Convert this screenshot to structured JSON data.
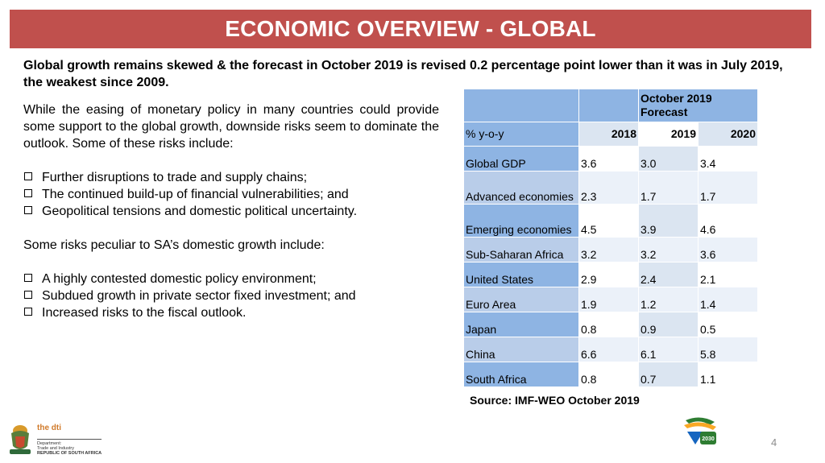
{
  "header": {
    "title": "ECONOMIC OVERVIEW - GLOBAL"
  },
  "headline": "Global growth remains skewed  & the forecast in October 2019 is revised 0.2 percentage point lower than it was in July 2019, the weakest since 2009.",
  "body": {
    "intro": "While the easing of monetary policy in many countries could provide some support to the global growth,  downside risks seem to dominate the outlook. Some of these risks include:",
    "risks_global": [
      "Further disruptions to trade and supply chains;",
      "The continued build-up of financial vulnerabilities; and",
      "Geopolitical tensions and domestic political uncertainty."
    ],
    "sa_intro": "Some risks peculiar to SA’s domestic growth include:",
    "risks_sa": [
      "A highly contested domestic policy environment;",
      "Subdued growth in private sector fixed investment; and",
      "Increased risks to the fiscal outlook."
    ]
  },
  "table": {
    "forecast_header": "October 2019 Forecast",
    "unit_label": "% y-o-y",
    "years": [
      "2018",
      "2019",
      "2020"
    ],
    "rows": [
      {
        "label": "Global GDP",
        "values": [
          "3.6",
          "3.0",
          "3.4"
        ]
      },
      {
        "label": "Advanced economies",
        "values": [
          "2.3",
          "1.7",
          "1.7"
        ]
      },
      {
        "label": "Emerging economies",
        "values": [
          "4.5",
          "3.9",
          "4.6"
        ]
      },
      {
        "label": "Sub-Saharan Africa",
        "values": [
          "3.2",
          "3.2",
          "3.6"
        ]
      },
      {
        "label": "United States",
        "values": [
          "2.9",
          "2.4",
          "2.1"
        ]
      },
      {
        "label": "Euro Area",
        "values": [
          "1.9",
          "1.2",
          "1.4"
        ]
      },
      {
        "label": "Japan",
        "values": [
          "0.8",
          "0.9",
          "0.5"
        ]
      },
      {
        "label": "China",
        "values": [
          "6.6",
          "6.1",
          "5.8"
        ]
      },
      {
        "label": "South Africa",
        "values": [
          "0.8",
          "0.7",
          "1.1"
        ]
      }
    ]
  },
  "source": "Source: IMF-WEO October 2019",
  "footer": {
    "page_number": "4",
    "dti_logo": {
      "name": "the dti",
      "sub_line_1": "Department:",
      "sub_line_2": "Trade and Industry",
      "country": "REPUBLIC OF SOUTH AFRICA"
    },
    "ndp_logo": {
      "text": "2030"
    }
  },
  "colors": {
    "title_bar": "#c0504d",
    "table_header": "#8eb4e3",
    "table_cell": "#dbe5f1"
  }
}
